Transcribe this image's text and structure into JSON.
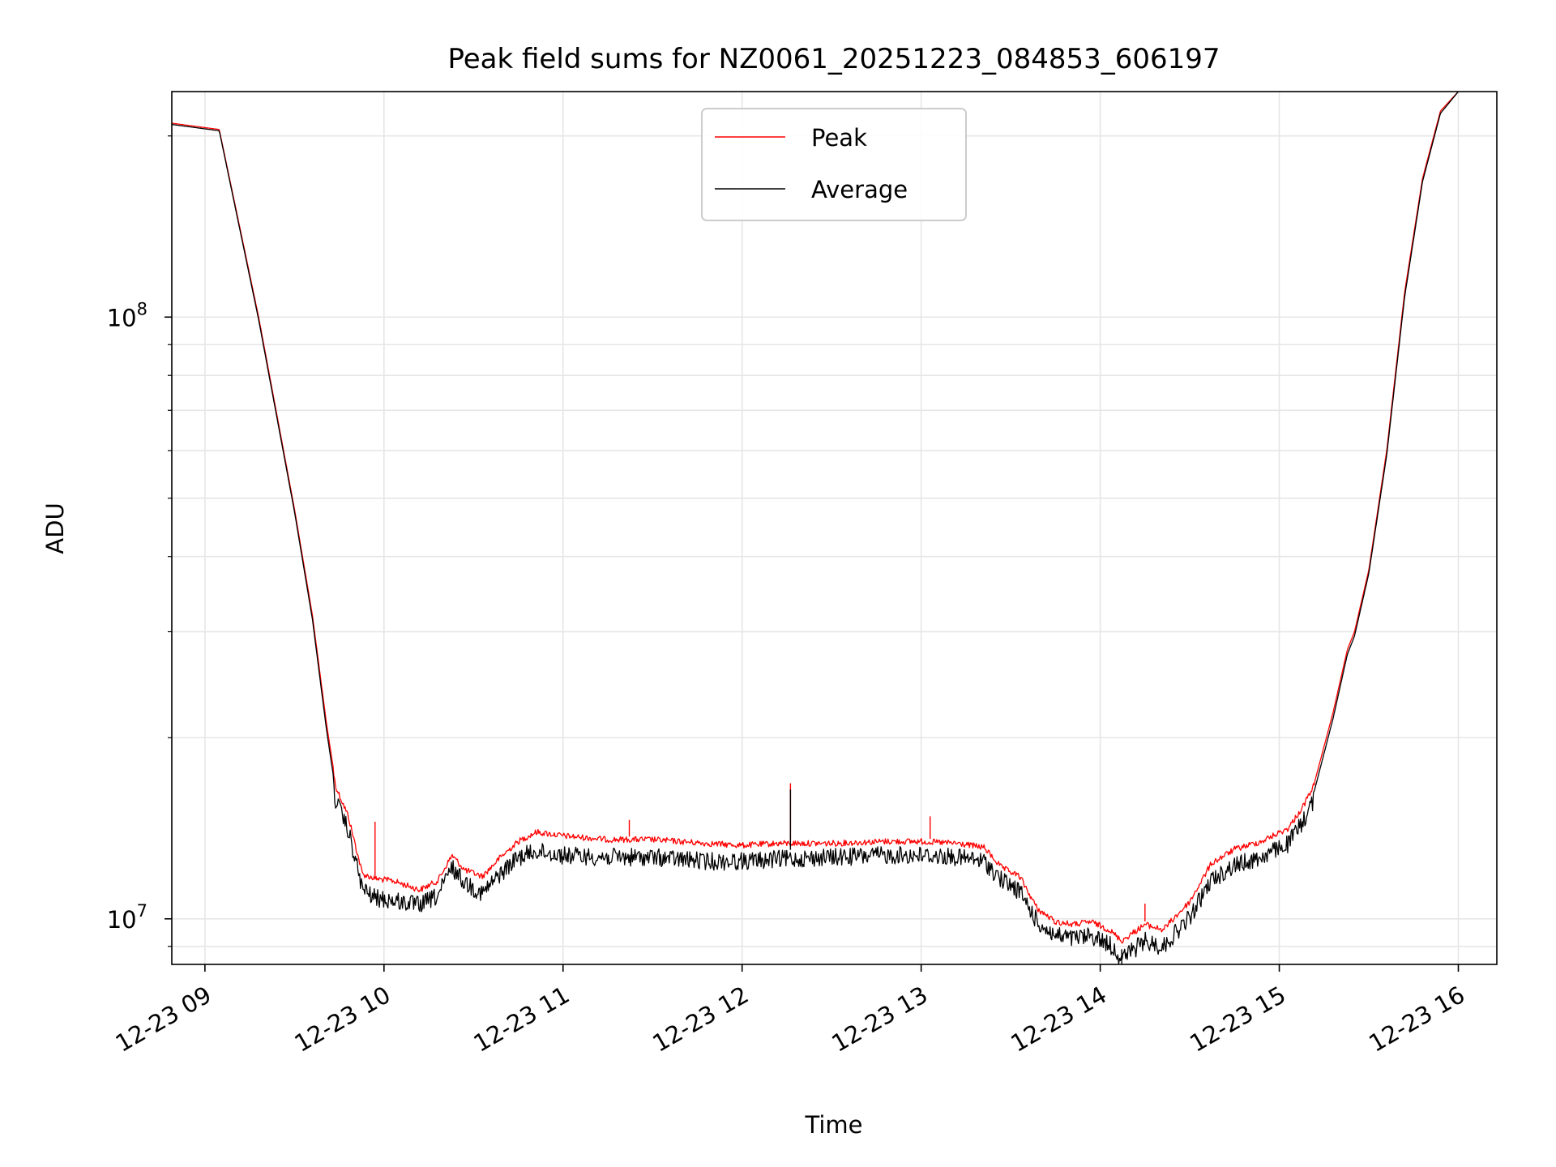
{
  "chart_data": {
    "type": "line",
    "title": "Peak field sums for NZ0061_20251223_084853_606197",
    "xlabel": "Time",
    "ylabel": "ADU",
    "xlim": [
      8.815,
      16.215
    ],
    "ylim": [
      8400000,
      237000000
    ],
    "yscale": "log",
    "grid": true,
    "legend_position": "top-center",
    "x_ticks": [
      {
        "value": 9,
        "label": "12-23 09"
      },
      {
        "value": 10,
        "label": "12-23 10"
      },
      {
        "value": 11,
        "label": "12-23 11"
      },
      {
        "value": 12,
        "label": "12-23 12"
      },
      {
        "value": 13,
        "label": "12-23 13"
      },
      {
        "value": 14,
        "label": "12-23 14"
      },
      {
        "value": 15,
        "label": "12-23 15"
      },
      {
        "value": 16,
        "label": "12-23 16"
      }
    ],
    "y_ticks": [
      {
        "value": 10000000,
        "base": "10",
        "exp": "7"
      },
      {
        "value": 100000000,
        "base": "10",
        "exp": "8"
      }
    ],
    "x_units": "hours",
    "series": [
      {
        "name": "Peak",
        "color": "#ff0000",
        "points": [
          [
            8.815,
            210000000
          ],
          [
            9.08,
            205000000
          ],
          [
            9.3,
            100000000
          ],
          [
            9.5,
            48000000
          ],
          [
            9.6,
            32000000
          ],
          [
            9.68,
            21000000
          ],
          [
            9.73,
            16800000
          ],
          [
            9.8,
            15000000
          ],
          [
            9.88,
            12000000
          ],
          [
            9.95,
            11800000
          ],
          [
            10.05,
            11700000
          ],
          [
            10.2,
            11300000
          ],
          [
            10.3,
            11700000
          ],
          [
            10.38,
            12900000
          ],
          [
            10.45,
            12200000
          ],
          [
            10.55,
            11900000
          ],
          [
            10.65,
            12800000
          ],
          [
            10.75,
            13600000
          ],
          [
            10.85,
            14100000
          ],
          [
            11.0,
            13900000
          ],
          [
            11.25,
            13700000
          ],
          [
            11.5,
            13700000
          ],
          [
            11.8,
            13500000
          ],
          [
            12.0,
            13400000
          ],
          [
            12.2,
            13500000
          ],
          [
            12.5,
            13500000
          ],
          [
            12.8,
            13600000
          ],
          [
            13.0,
            13600000
          ],
          [
            13.2,
            13500000
          ],
          [
            13.35,
            13300000
          ],
          [
            13.45,
            12300000
          ],
          [
            13.55,
            11900000
          ],
          [
            13.65,
            10500000
          ],
          [
            13.75,
            10000000
          ],
          [
            13.85,
            9900000
          ],
          [
            13.95,
            10000000
          ],
          [
            14.05,
            9700000
          ],
          [
            14.12,
            9300000
          ],
          [
            14.25,
            9900000
          ],
          [
            14.35,
            9700000
          ],
          [
            14.5,
            10800000
          ],
          [
            14.62,
            12500000
          ],
          [
            14.75,
            13200000
          ],
          [
            14.9,
            13600000
          ],
          [
            15.05,
            14300000
          ],
          [
            15.13,
            15500000
          ],
          [
            15.2,
            17000000
          ],
          [
            15.3,
            22000000
          ],
          [
            15.38,
            28000000
          ],
          [
            15.42,
            30000000
          ],
          [
            15.5,
            38000000
          ],
          [
            15.6,
            60000000
          ],
          [
            15.7,
            110000000
          ],
          [
            15.8,
            170000000
          ],
          [
            15.9,
            220000000
          ],
          [
            16.0,
            237000000
          ]
        ],
        "spikes": [
          {
            "x": 9.95,
            "value": 14500000
          },
          {
            "x": 11.37,
            "value": 14600000
          },
          {
            "x": 12.27,
            "value": 16800000
          },
          {
            "x": 13.05,
            "value": 14800000
          },
          {
            "x": 14.25,
            "value": 10600000
          }
        ]
      },
      {
        "name": "Average",
        "color": "#000000",
        "points": [
          [
            8.815,
            209000000
          ],
          [
            9.08,
            204000000
          ],
          [
            9.3,
            99000000
          ],
          [
            9.5,
            47500000
          ],
          [
            9.6,
            31500000
          ],
          [
            9.68,
            20500000
          ],
          [
            9.73,
            16300000
          ],
          [
            9.8,
            14500000
          ],
          [
            9.88,
            11600000
          ],
          [
            9.95,
            11200000
          ],
          [
            10.05,
            11100000
          ],
          [
            10.2,
            10900000
          ],
          [
            10.3,
            11300000
          ],
          [
            10.38,
            12600000
          ],
          [
            10.45,
            11900000
          ],
          [
            10.55,
            11400000
          ],
          [
            10.65,
            12300000
          ],
          [
            10.75,
            13100000
          ],
          [
            10.85,
            13400000
          ],
          [
            11.0,
            13200000
          ],
          [
            11.25,
            13100000
          ],
          [
            11.5,
            13100000
          ],
          [
            11.8,
            12900000
          ],
          [
            12.0,
            12900000
          ],
          [
            12.2,
            13000000
          ],
          [
            12.5,
            13100000
          ],
          [
            12.8,
            13200000
          ],
          [
            13.0,
            13200000
          ],
          [
            13.2,
            13100000
          ],
          [
            13.35,
            12900000
          ],
          [
            13.45,
            12000000
          ],
          [
            13.55,
            11500000
          ],
          [
            13.65,
            10200000
          ],
          [
            13.75,
            9700000
          ],
          [
            13.85,
            9600000
          ],
          [
            13.95,
            9700000
          ],
          [
            14.05,
            9400000
          ],
          [
            14.12,
            8900000
          ],
          [
            14.25,
            9500000
          ],
          [
            14.35,
            9300000
          ],
          [
            14.5,
            10400000
          ],
          [
            14.62,
            12000000
          ],
          [
            14.75,
            12700000
          ],
          [
            14.9,
            13100000
          ],
          [
            15.05,
            13800000
          ],
          [
            15.13,
            15000000
          ],
          [
            15.2,
            16500000
          ],
          [
            15.3,
            21500000
          ],
          [
            15.38,
            27500000
          ],
          [
            15.42,
            29500000
          ],
          [
            15.5,
            37500000
          ],
          [
            15.6,
            59000000
          ],
          [
            15.7,
            108000000
          ],
          [
            15.8,
            168000000
          ],
          [
            15.9,
            218000000
          ],
          [
            16.0,
            237000000
          ]
        ],
        "spikes": [
          {
            "x": 12.27,
            "value": 16400000
          },
          {
            "x": 14.12,
            "value": 8400000
          }
        ]
      }
    ]
  }
}
